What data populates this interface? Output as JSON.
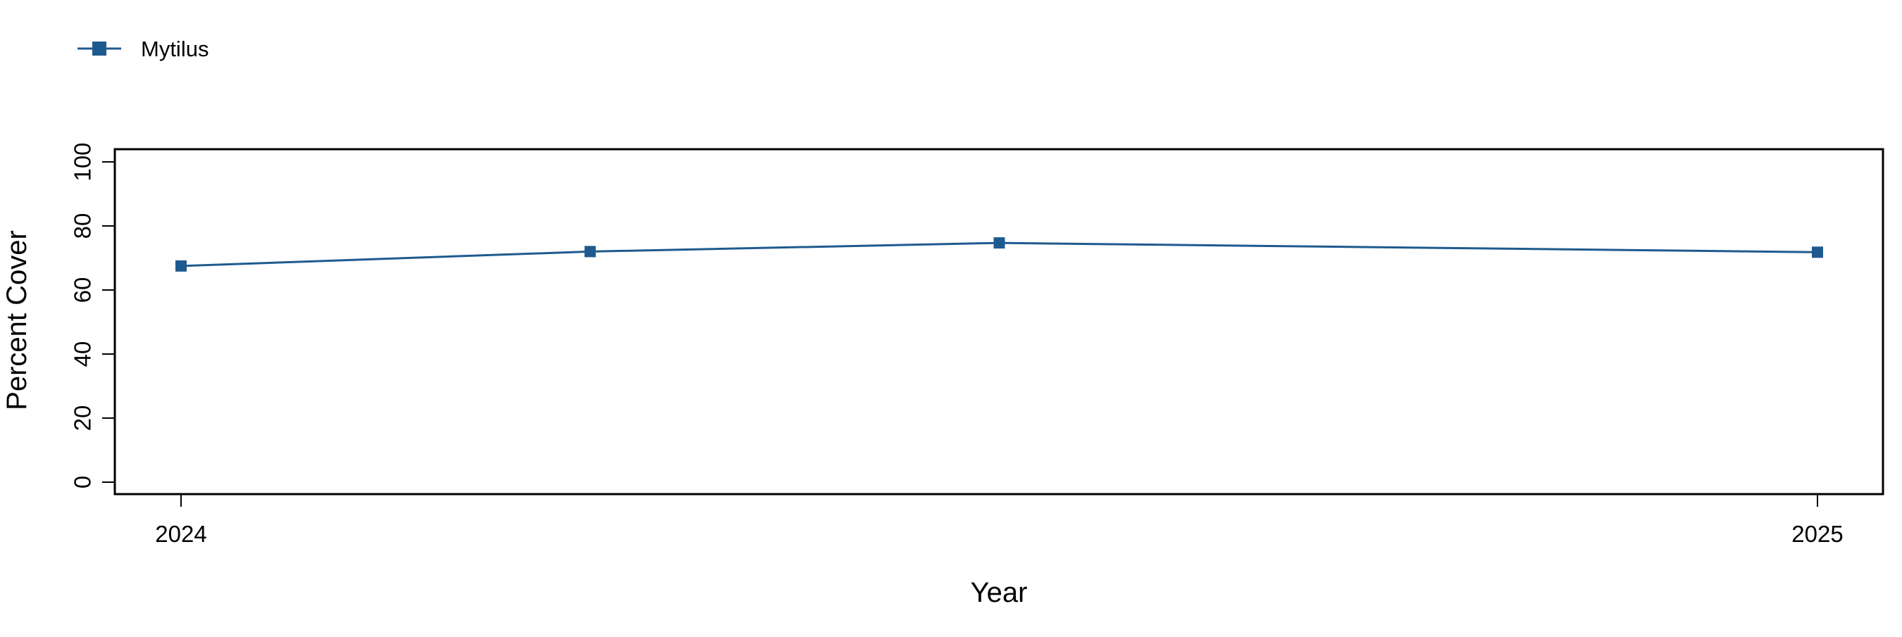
{
  "chart_data": {
    "type": "line",
    "title": "",
    "xlabel": "Year",
    "ylabel": "Percent Cover",
    "x_tick_labels": [
      "2024",
      "2025"
    ],
    "y_ticks": [
      0,
      20,
      40,
      60,
      80,
      100
    ],
    "ylim": [
      -4,
      104
    ],
    "x_range": [
      2024,
      2025
    ],
    "x": [
      2024.0,
      2024.25,
      2024.5,
      2025.0
    ],
    "series": [
      {
        "name": "Mytilus",
        "values": [
          67.5,
          72.0,
          74.7,
          71.8
        ],
        "color": "#1f5a8e",
        "marker": "square"
      }
    ],
    "legend": {
      "placement": "top-left",
      "entries": [
        "Mytilus"
      ]
    },
    "grid": false
  }
}
